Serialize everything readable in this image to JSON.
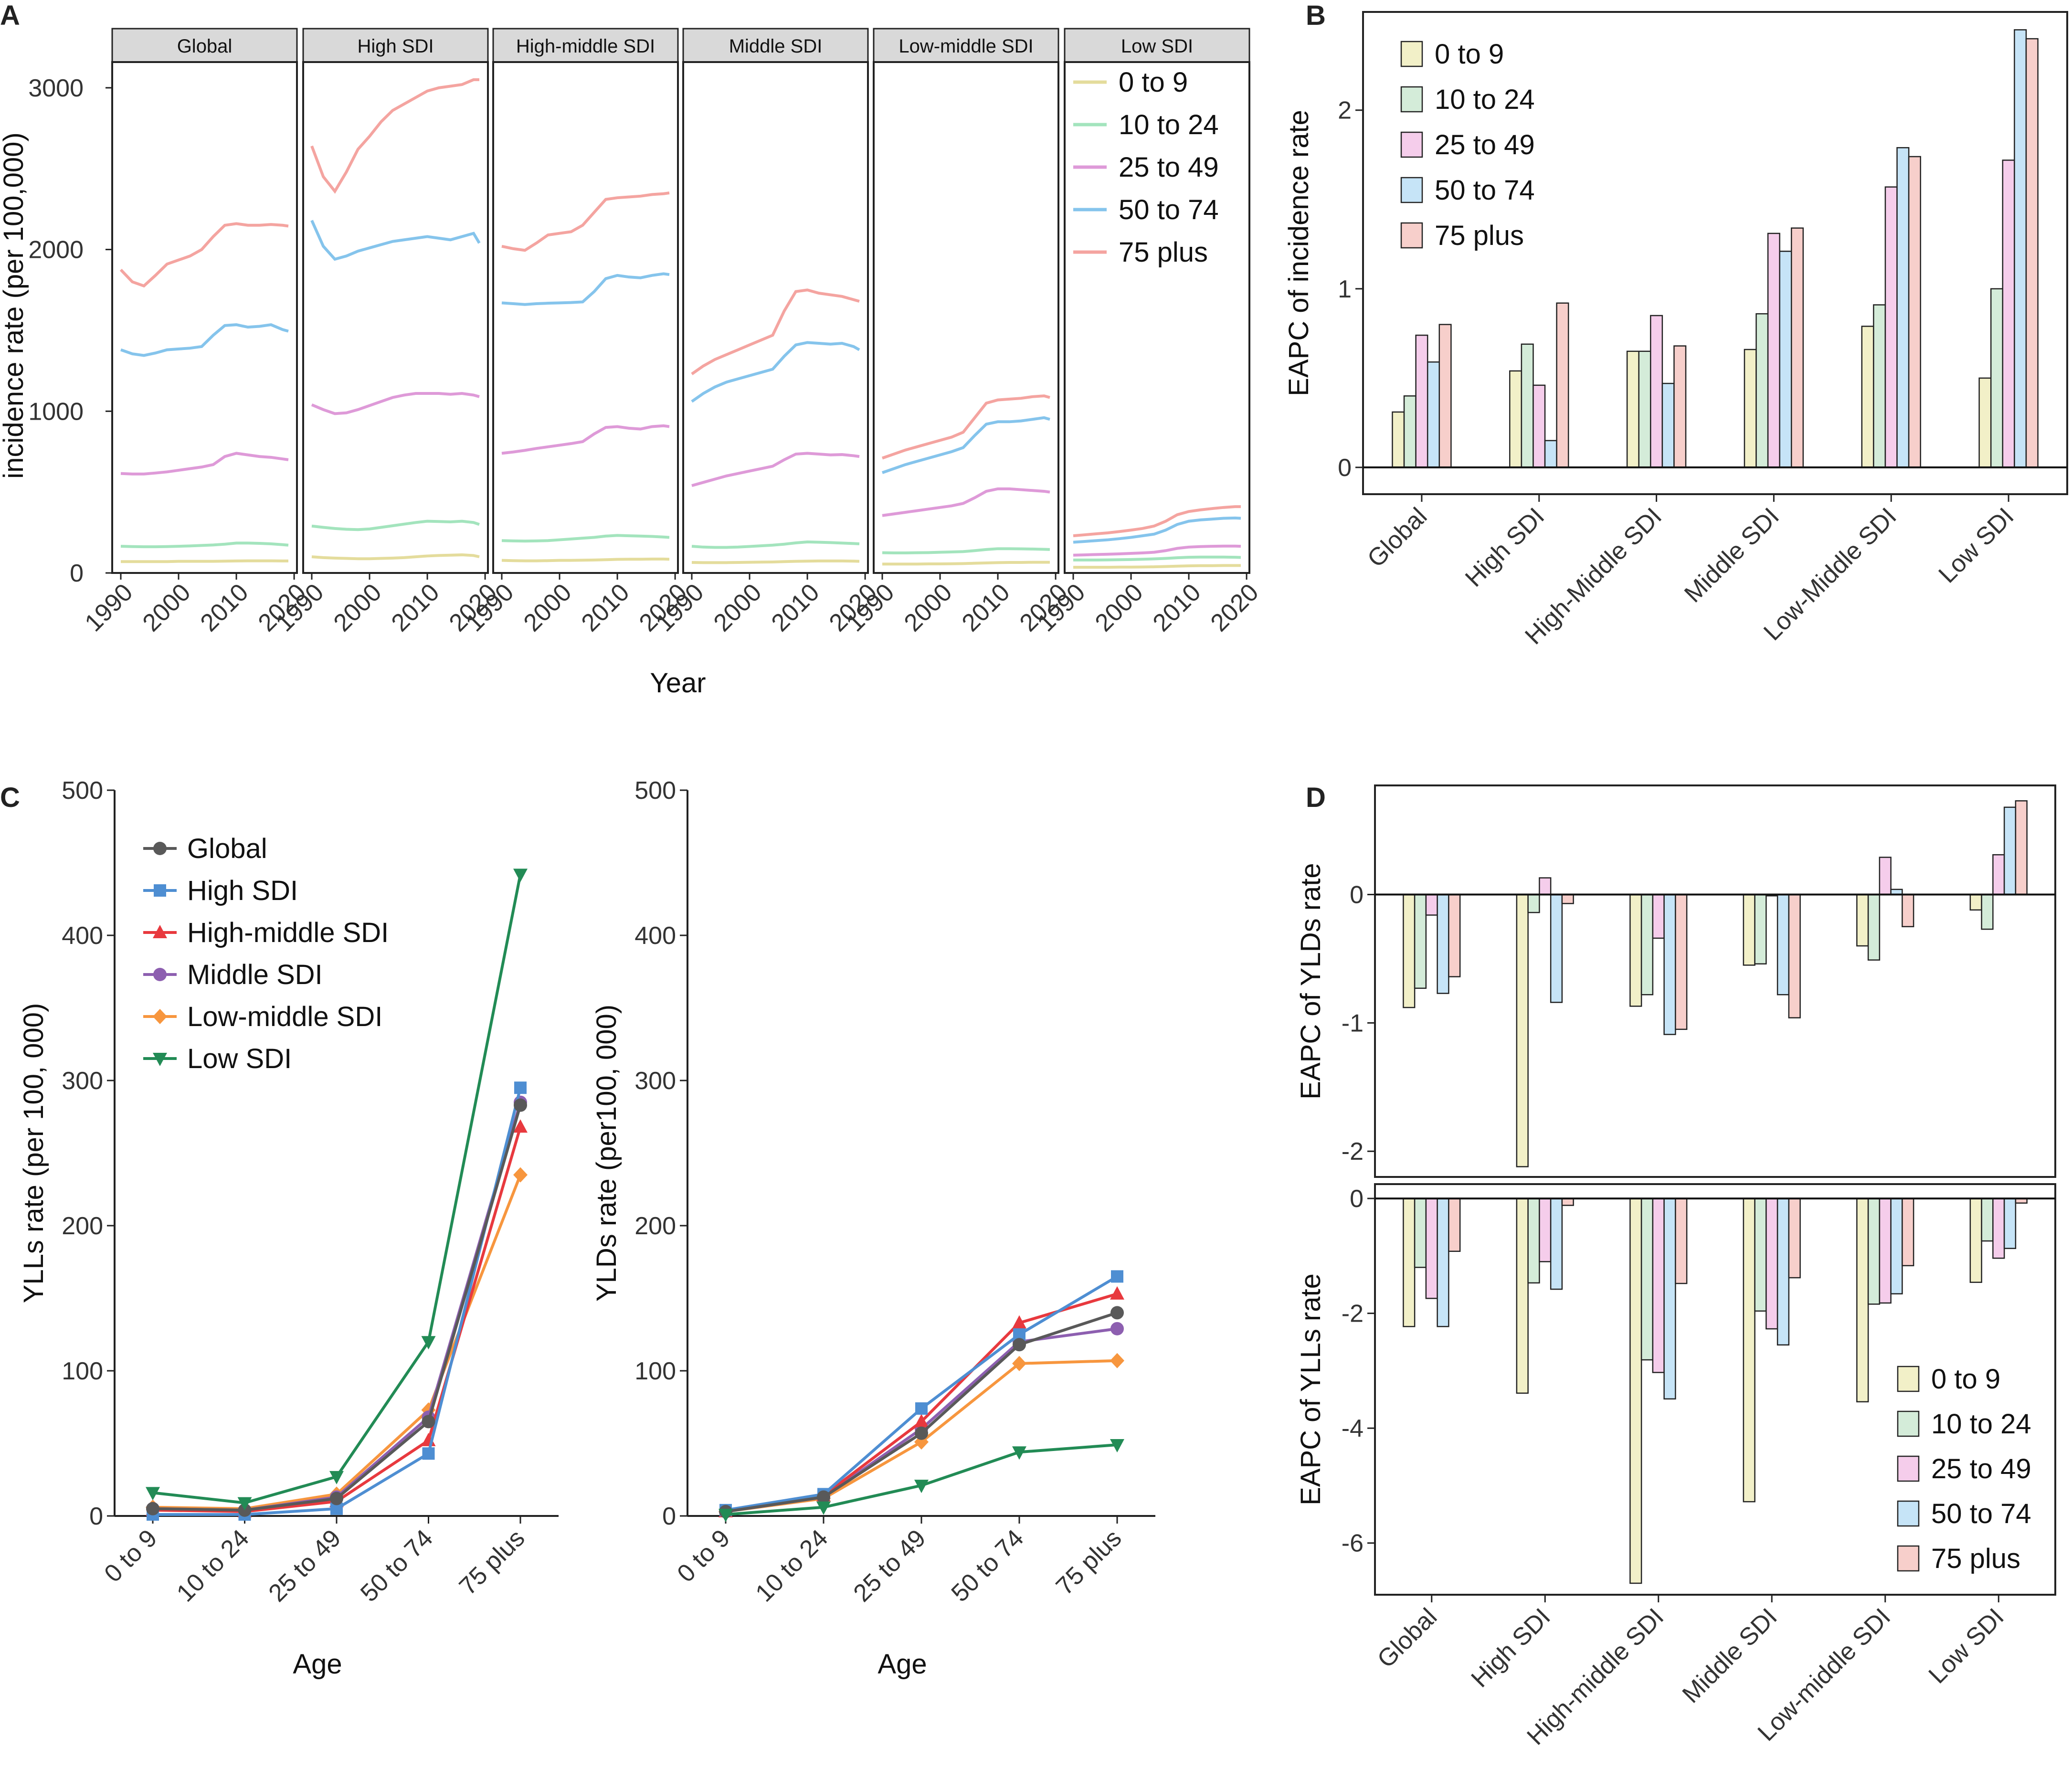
{
  "chart_data": [
    {
      "panel": "A",
      "type": "line",
      "facets": [
        "Global",
        "High SDI",
        "High-middle SDI",
        "Middle SDI",
        "Low-middle SDI",
        "Low SDI"
      ],
      "xlabel": "Year",
      "ylabel": "incidence rate (per 100,000)",
      "xlim": [
        1990,
        2019
      ],
      "xticks": [
        "1990",
        "2000",
        "2010",
        "2020"
      ],
      "ylim": [
        0,
        3100
      ],
      "yticks": [
        "0",
        "1000",
        "2000",
        "3000"
      ],
      "legend": [
        "0 to 9",
        "10 to 24",
        "25 to 49",
        "50 to 74",
        "75 plus"
      ],
      "years": [
        1990,
        1992,
        1994,
        1996,
        1998,
        2000,
        2002,
        2004,
        2006,
        2008,
        2010,
        2012,
        2014,
        2016,
        2018,
        2019
      ],
      "series": {
        "Global": {
          "0 to 9": [
            70,
            70,
            70,
            70,
            70,
            72,
            72,
            72,
            72,
            73,
            74,
            75,
            75,
            75,
            74,
            74
          ],
          "10 to 24": [
            165,
            163,
            162,
            162,
            163,
            165,
            167,
            170,
            173,
            178,
            185,
            185,
            183,
            180,
            175,
            172
          ],
          "25 to 49": [
            615,
            612,
            612,
            618,
            625,
            635,
            645,
            655,
            670,
            720,
            740,
            730,
            720,
            715,
            705,
            700
          ],
          "50 to 74": [
            1380,
            1355,
            1345,
            1360,
            1380,
            1385,
            1390,
            1400,
            1470,
            1530,
            1535,
            1520,
            1525,
            1535,
            1505,
            1495
          ],
          "75 plus": [
            1875,
            1800,
            1775,
            1840,
            1910,
            1935,
            1960,
            2000,
            2080,
            2150,
            2160,
            2150,
            2150,
            2155,
            2150,
            2145
          ]
        },
        "High SDI": {
          "0 to 9": [
            100,
            95,
            92,
            90,
            88,
            88,
            90,
            92,
            95,
            100,
            105,
            108,
            110,
            112,
            108,
            100
          ],
          "10 to 24": [
            290,
            282,
            275,
            270,
            268,
            272,
            282,
            292,
            302,
            312,
            320,
            318,
            316,
            320,
            312,
            300
          ],
          "25 to 49": [
            1040,
            1010,
            985,
            990,
            1010,
            1035,
            1060,
            1085,
            1100,
            1110,
            1110,
            1110,
            1105,
            1110,
            1100,
            1090
          ],
          "50 to 74": [
            2180,
            2020,
            1940,
            1960,
            1990,
            2010,
            2030,
            2050,
            2060,
            2070,
            2080,
            2070,
            2060,
            2080,
            2100,
            2040
          ],
          "75 plus": [
            2640,
            2450,
            2360,
            2480,
            2620,
            2700,
            2790,
            2860,
            2900,
            2940,
            2980,
            3000,
            3010,
            3020,
            3050,
            3050
          ]
        },
        "High-middle SDI": {
          "0 to 9": [
            78,
            76,
            75,
            75,
            76,
            78,
            78,
            79,
            80,
            82,
            84,
            85,
            85,
            86,
            86,
            85
          ],
          "10 to 24": [
            200,
            198,
            197,
            198,
            200,
            205,
            210,
            215,
            220,
            228,
            232,
            230,
            228,
            226,
            222,
            220
          ],
          "25 to 49": [
            740,
            748,
            758,
            770,
            780,
            790,
            800,
            812,
            860,
            900,
            905,
            895,
            890,
            905,
            910,
            905
          ],
          "50 to 74": [
            1670,
            1665,
            1660,
            1665,
            1668,
            1670,
            1672,
            1676,
            1740,
            1820,
            1840,
            1830,
            1825,
            1840,
            1850,
            1845
          ],
          "75 plus": [
            2020,
            2005,
            1995,
            2040,
            2090,
            2100,
            2110,
            2150,
            2230,
            2310,
            2320,
            2325,
            2330,
            2340,
            2345,
            2350
          ]
        },
        "Middle SDI": {
          "0 to 9": [
            65,
            64,
            64,
            64,
            65,
            66,
            67,
            68,
            70,
            72,
            73,
            74,
            74,
            74,
            73,
            72
          ],
          "10 to 24": [
            165,
            160,
            158,
            158,
            160,
            164,
            168,
            172,
            178,
            186,
            192,
            190,
            188,
            185,
            182,
            180
          ],
          "25 to 49": [
            540,
            560,
            580,
            600,
            615,
            630,
            645,
            660,
            700,
            735,
            740,
            735,
            730,
            732,
            725,
            720
          ],
          "50 to 74": [
            1060,
            1110,
            1150,
            1180,
            1200,
            1220,
            1240,
            1260,
            1340,
            1410,
            1425,
            1420,
            1415,
            1420,
            1400,
            1380
          ],
          "75 plus": [
            1230,
            1280,
            1320,
            1350,
            1380,
            1410,
            1440,
            1470,
            1620,
            1740,
            1750,
            1730,
            1720,
            1710,
            1690,
            1680
          ]
        },
        "Low-middle SDI": {
          "0 to 9": [
            55,
            55,
            55,
            55,
            56,
            56,
            57,
            58,
            60,
            62,
            64,
            65,
            65,
            66,
            66,
            66
          ],
          "10 to 24": [
            125,
            124,
            124,
            125,
            126,
            128,
            130,
            132,
            138,
            145,
            150,
            150,
            149,
            148,
            146,
            145
          ],
          "25 to 49": [
            355,
            365,
            375,
            385,
            395,
            405,
            415,
            430,
            465,
            505,
            520,
            520,
            515,
            510,
            505,
            500
          ],
          "50 to 74": [
            620,
            645,
            670,
            690,
            710,
            730,
            750,
            775,
            850,
            920,
            935,
            935,
            940,
            950,
            960,
            950
          ],
          "75 plus": [
            710,
            735,
            760,
            780,
            800,
            820,
            840,
            870,
            960,
            1050,
            1070,
            1075,
            1080,
            1090,
            1095,
            1085
          ]
        },
        "Low SDI": {
          "0 to 9": [
            35,
            35,
            35,
            35,
            36,
            36,
            37,
            38,
            40,
            42,
            44,
            45,
            45,
            46,
            46,
            46
          ],
          "10 to 24": [
            80,
            80,
            80,
            81,
            82,
            83,
            85,
            87,
            90,
            94,
            97,
            98,
            98,
            98,
            97,
            96
          ],
          "25 to 49": [
            110,
            112,
            114,
            116,
            118,
            121,
            124,
            128,
            138,
            152,
            160,
            163,
            165,
            166,
            166,
            165
          ],
          "50 to 74": [
            190,
            195,
            200,
            205,
            212,
            220,
            230,
            240,
            265,
            300,
            320,
            328,
            333,
            338,
            340,
            338
          ],
          "75 plus": [
            230,
            236,
            242,
            248,
            256,
            265,
            275,
            290,
            320,
            360,
            380,
            390,
            398,
            405,
            410,
            410
          ]
        }
      }
    },
    {
      "panel": "B",
      "type": "bar",
      "categories": [
        "Global",
        "High SDI",
        "High-Middle SDI",
        "Middle SDI",
        "Low-Middle SDI",
        "Low SDI"
      ],
      "ylabel": "EAPC of incidence rate",
      "ylim": [
        -0.15,
        2.55
      ],
      "yticks": [
        "0",
        "1",
        "2"
      ],
      "series": [
        {
          "name": "0 to 9",
          "values": [
            0.31,
            0.54,
            0.65,
            0.66,
            0.79,
            0.5
          ]
        },
        {
          "name": "10 to 24",
          "values": [
            0.4,
            0.69,
            0.65,
            0.86,
            0.91,
            1.0
          ]
        },
        {
          "name": "25 to 49",
          "values": [
            0.74,
            0.46,
            0.85,
            1.31,
            1.57,
            1.72
          ]
        },
        {
          "name": "50 to 74",
          "values": [
            0.59,
            0.15,
            0.47,
            1.21,
            1.79,
            2.45
          ]
        },
        {
          "name": "75 plus",
          "values": [
            0.8,
            0.92,
            0.68,
            1.34,
            1.74,
            2.4
          ]
        }
      ]
    },
    {
      "panel": "C",
      "type": "line",
      "categories": [
        "0 to 9",
        "10 to 24",
        "25 to 49",
        "50 to 74",
        "75 plus"
      ],
      "xlabel": "Age",
      "ylabel": "YLLs rate (per 100, 000)",
      "ylim": [
        0,
        500
      ],
      "yticks": [
        "0",
        "100",
        "200",
        "300",
        "400",
        "500"
      ],
      "series": [
        {
          "name": "Global",
          "values": [
            5,
            4,
            12,
            65,
            283
          ]
        },
        {
          "name": "High SDI",
          "values": [
            1,
            1,
            5,
            43,
            295
          ]
        },
        {
          "name": "High-middle SDI",
          "values": [
            4,
            3,
            10,
            52,
            268
          ]
        },
        {
          "name": "Middle SDI",
          "values": [
            5,
            4,
            13,
            68,
            285
          ]
        },
        {
          "name": "Low-middle SDI",
          "values": [
            6,
            5,
            15,
            73,
            235
          ]
        },
        {
          "name": "Low SDI",
          "values": [
            16,
            9,
            27,
            120,
            442
          ]
        }
      ]
    },
    {
      "panel": "C2",
      "type": "line",
      "categories": [
        "0 to 9",
        "10 to 24",
        "25 to 49",
        "50 to 74",
        "75 plus"
      ],
      "xlabel": "Age",
      "ylabel": "YLDs rate (per100, 000)",
      "ylim": [
        0,
        500
      ],
      "yticks": [
        "0",
        "100",
        "200",
        "300",
        "400",
        "500"
      ],
      "series": [
        {
          "name": "Global",
          "values": [
            3,
            13,
            57,
            118,
            140
          ]
        },
        {
          "name": "High SDI",
          "values": [
            4,
            15,
            74,
            125,
            165
          ]
        },
        {
          "name": "High-middle SDI",
          "values": [
            3,
            14,
            65,
            133,
            153
          ]
        },
        {
          "name": "Middle SDI",
          "values": [
            3,
            13,
            60,
            120,
            129
          ]
        },
        {
          "name": "Low-middle SDI",
          "values": [
            3,
            12,
            51,
            105,
            107
          ]
        },
        {
          "name": "Low SDI",
          "values": [
            1,
            6,
            21,
            44,
            49
          ]
        }
      ]
    },
    {
      "panel": "D-top",
      "type": "bar",
      "categories": [
        "Global",
        "High SDI",
        "High-middle SDI",
        "Middle SDI",
        "Low-middle SDI",
        "Low SDI"
      ],
      "ylabel": "EAPC of YLDs rate",
      "ylim": [
        -2.2,
        0.85
      ],
      "yticks": [
        "-2",
        "-1",
        "0"
      ],
      "series": [
        {
          "name": "0 to 9",
          "values": [
            -0.88,
            -2.12,
            -0.87,
            -0.55,
            -0.4,
            -0.12
          ]
        },
        {
          "name": "10 to 24",
          "values": [
            -0.73,
            -0.14,
            -0.78,
            -0.54,
            -0.51,
            -0.27
          ]
        },
        {
          "name": "25 to 49",
          "values": [
            -0.16,
            0.13,
            -0.34,
            -0.01,
            0.29,
            0.31
          ]
        },
        {
          "name": "50 to 74",
          "values": [
            -0.77,
            -0.84,
            -1.09,
            -0.78,
            0.04,
            0.68
          ]
        },
        {
          "name": "75 plus",
          "values": [
            -0.64,
            -0.07,
            -1.05,
            -0.96,
            -0.25,
            0.73
          ]
        }
      ]
    },
    {
      "panel": "D-bottom",
      "type": "bar",
      "categories": [
        "Global",
        "High SDI",
        "High-middle SDI",
        "Middle SDI",
        "Low-middle SDI",
        "Low SDI"
      ],
      "ylabel": "EAPC of YLLs rate",
      "ylim": [
        -6.9,
        0.25
      ],
      "yticks": [
        "-6",
        "-4",
        "-2",
        "0"
      ],
      "series": [
        {
          "name": "0 to 9",
          "values": [
            -2.23,
            -3.39,
            -6.7,
            -5.28,
            -3.54,
            -1.46
          ]
        },
        {
          "name": "10 to 24",
          "values": [
            -1.2,
            -1.47,
            -2.81,
            -1.96,
            -1.84,
            -0.74
          ]
        },
        {
          "name": "25 to 49",
          "values": [
            -1.74,
            -1.1,
            -3.03,
            -2.27,
            -1.82,
            -1.04
          ]
        },
        {
          "name": "50 to 74",
          "values": [
            -2.23,
            -1.58,
            -3.49,
            -2.55,
            -1.66,
            -0.87
          ]
        },
        {
          "name": "75 plus",
          "values": [
            -0.92,
            -0.12,
            -1.48,
            -1.38,
            -1.17,
            -0.08
          ]
        }
      ]
    }
  ],
  "legend_age": [
    "0 to 9",
    "10 to 24",
    "25 to 49",
    "50 to 74",
    "75 plus"
  ],
  "legend_sdi": [
    "Global",
    "High SDI",
    "High-middle SDI",
    "Middle SDI",
    "Low-middle SDI",
    "Low SDI"
  ],
  "panel_labels": {
    "A": "A",
    "B": "B",
    "C": "C",
    "D": "D"
  },
  "colors": {
    "age_lines": [
      "#e4dc9c",
      "#a3e4bd",
      "#de9ad8",
      "#85c4ec",
      "#f4a4a0"
    ],
    "age_fill": [
      "#f2f0c8",
      "#d4ecd9",
      "#f5cdeb",
      "#c6e4f7",
      "#f7cfcb"
    ],
    "sdi_lines": [
      "#595959",
      "#4e8ed2",
      "#e8393e",
      "#8d5fb0",
      "#f7963e",
      "#228b55"
    ],
    "strip_fill": "#d9d9d9"
  }
}
